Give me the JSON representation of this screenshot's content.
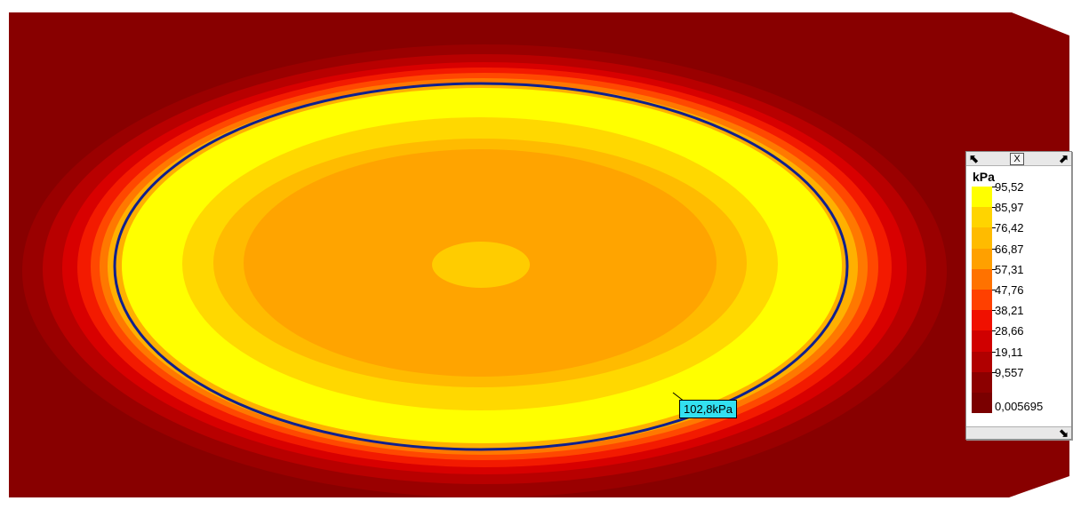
{
  "legend": {
    "unit": "kPa",
    "close_label": "X",
    "arrows": {
      "nw": "⬉",
      "ne": "⬈",
      "se": "⬊"
    },
    "levels": [
      {
        "label": "95,52",
        "color": "#ffff00"
      },
      {
        "label": "85,97",
        "color": "#ffd400"
      },
      {
        "label": "76,42",
        "color": "#ffbb00"
      },
      {
        "label": "66,87",
        "color": "#ffa000"
      },
      {
        "label": "57,31",
        "color": "#ff7200"
      },
      {
        "label": "47,76",
        "color": "#ff4000"
      },
      {
        "label": "38,21",
        "color": "#f01000"
      },
      {
        "label": "28,66",
        "color": "#d00000"
      },
      {
        "label": "19,11",
        "color": "#b00000"
      },
      {
        "label": "9,557",
        "color": "#8c0000"
      },
      {
        "label": "0,005695",
        "color": "#7a0000"
      }
    ]
  },
  "contour": {
    "line_color": "#10208c",
    "callout_label": "102,8kPa",
    "callout_color": "#33e0f0"
  },
  "colors": {
    "background_field": "#880000",
    "center_spot": "#ffcc00"
  }
}
